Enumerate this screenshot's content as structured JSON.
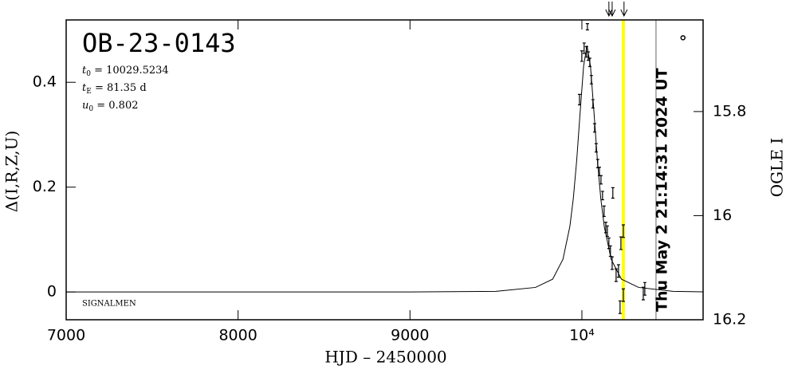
{
  "chart_data": {
    "type": "scatter",
    "title": "OB-23-0143",
    "params": [
      {
        "label": "t",
        "sub": "0",
        "text": " = 10029.5234"
      },
      {
        "label": "t",
        "sub": "E",
        "text": " = 81.35 d"
      },
      {
        "label": "u",
        "sub": "0",
        "text": " = 0.802"
      }
    ],
    "note": "SIGNALMEN",
    "x_label": "HJD – 2450000",
    "y_label": "Δ(I,R,Z,U)",
    "y2_label": "OGLE I",
    "xlim": [
      7000,
      10705
    ],
    "xticks": [
      7000,
      8000,
      9000,
      {
        "value": 10000,
        "label": "10⁴"
      }
    ],
    "ylim": [
      -0.053,
      0.519
    ],
    "yticks": [
      0,
      0.2,
      0.4
    ],
    "y2lim": [
      16.2,
      15.624
    ],
    "y2ticks": [
      15.8,
      16,
      16.2
    ],
    "model": {
      "color": "#000000",
      "x": [
        7000,
        9000,
        9500,
        9730,
        9830,
        9890,
        9930,
        9950,
        9970,
        9990,
        10010,
        10029.5,
        10050,
        10070,
        10090,
        10110,
        10130,
        10170,
        10230,
        10330,
        10530,
        10705
      ],
      "values": [
        0,
        0.0001,
        0.0012,
        0.0087,
        0.0245,
        0.0625,
        0.125,
        0.178,
        0.252,
        0.344,
        0.431,
        0.47,
        0.431,
        0.344,
        0.252,
        0.178,
        0.125,
        0.0625,
        0.0245,
        0.0087,
        0.0012,
        0.0003
      ]
    },
    "points": {
      "color": "#000000",
      "x": [
        10032,
        9999.6,
        10013,
        10027,
        10037,
        10046,
        9986,
        10055,
        10064,
        10074,
        10083,
        10092,
        10102,
        10111,
        10120,
        10129,
        10139,
        10148,
        10157,
        10166,
        10180,
        10176,
        10199,
        10213,
        10222,
        10241,
        10241,
        10227,
        10366,
        10357,
        10588
      ],
      "values": [
        0.506,
        0.45,
        0.465,
        0.458,
        0.45,
        0.438,
        0.367,
        0.405,
        0.359,
        0.313,
        0.275,
        0.245,
        0.23,
        0.214,
        0.184,
        0.154,
        0.123,
        0.116,
        0.093,
        0.078,
        0.189,
        0.055,
        0.032,
        0.04,
        -0.029,
        0.116,
        -0.006,
        0.093,
        0.006,
        -0.003,
        0.485
      ],
      "errors": [
        0.006,
        0.01,
        0.01,
        0.01,
        0.008,
        0.008,
        0.01,
        0.008,
        0.008,
        0.008,
        0.008,
        0.008,
        0.008,
        0.008,
        0.008,
        0.01,
        0.01,
        0.01,
        0.01,
        0.01,
        0.01,
        0.012,
        0.012,
        0.012,
        0.012,
        0.012,
        0.012,
        0.012,
        0.012,
        0.012,
        null
      ]
    },
    "markers": [
      {
        "x": 10241,
        "color": "#ffff00"
      },
      {
        "x": 10431,
        "color": "#999999",
        "label": "Thu May  2 21:14:31 2024 UT"
      }
    ],
    "arrows": [
      10157,
      10176,
      10245
    ]
  }
}
